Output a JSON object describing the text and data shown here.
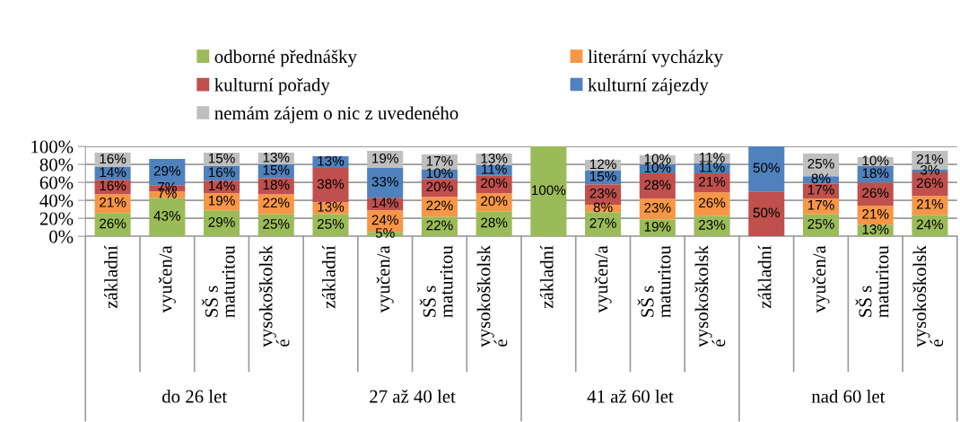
{
  "chart_data": {
    "type": "bar",
    "stacked": true,
    "categories": [
      "základní",
      "vyučen/a",
      "SŠ s\nmaturitou",
      "vysokoškolsk\né",
      "základní",
      "vyučen/a",
      "SŠ s\nmaturitou",
      "vysokoškolsk\né",
      "základní",
      "vyučen/a",
      "SŠ s\nmaturitou",
      "vysokoškolsk\né",
      "základní",
      "vyučen/a",
      "SŠ s\nmaturitou",
      "vysokoškolsk\né"
    ],
    "series": [
      {
        "name": "odborné přednášky",
        "color": "#9bbb59",
        "values": [
          26,
          43,
          29,
          25,
          25,
          5,
          22,
          28,
          100,
          27,
          19,
          23,
          null,
          25,
          13,
          24
        ],
        "value_labels": [
          "26%",
          "43%",
          "29%",
          "25%",
          "25%",
          "5%",
          "22%",
          "28%",
          "100%",
          "27%",
          "19%",
          "23%",
          null,
          "25%",
          "13%",
          "24%"
        ]
      },
      {
        "name": "literární vycházky",
        "color": "#f79646",
        "values": [
          21,
          7,
          19,
          22,
          13,
          24,
          22,
          20,
          null,
          8,
          23,
          26,
          null,
          17,
          21,
          21
        ],
        "value_labels": [
          "21%",
          "7%",
          "19%",
          "22%",
          "13%",
          "24%",
          "22%",
          "20%",
          null,
          "8%",
          "23%",
          "26%",
          null,
          "17%",
          "21%",
          "21%"
        ]
      },
      {
        "name": "kulturní pořady",
        "color": "#c0504d",
        "values": [
          16,
          7,
          14,
          18,
          38,
          14,
          20,
          20,
          null,
          23,
          28,
          21,
          50,
          17,
          26,
          26
        ],
        "value_labels": [
          "16%",
          "7%",
          "14%",
          "18%",
          "38%",
          "14%",
          "20%",
          "20%",
          null,
          "23%",
          "28%",
          "21%",
          "50%",
          "17%",
          "26%",
          "26%"
        ]
      },
      {
        "name": "kulturní zájezdy",
        "color": "#4f81bd",
        "values": [
          14,
          29,
          16,
          15,
          13,
          33,
          10,
          11,
          null,
          15,
          10,
          11,
          50,
          8,
          18,
          3
        ],
        "value_labels": [
          "14%",
          "29%",
          "16%",
          "15%",
          "13%",
          "33%",
          "10%",
          "11%",
          null,
          "15%",
          "10%",
          "11%",
          "50%",
          "8%",
          "18%",
          "3%"
        ]
      },
      {
        "name": "nemám zájem o nic z uvedeného",
        "color": "#bfbfbf",
        "values": [
          16,
          null,
          15,
          13,
          null,
          19,
          17,
          13,
          null,
          12,
          10,
          11,
          null,
          25,
          10,
          21
        ],
        "value_labels": [
          "16%",
          null,
          "15%",
          "13%",
          null,
          "19%",
          "17%",
          "13%",
          null,
          "12%",
          "10%",
          "11%",
          null,
          "25%",
          "10%",
          "21%"
        ]
      }
    ],
    "ylim": [
      0,
      100
    ],
    "yticks": [
      {
        "value": 0,
        "label": "0%"
      },
      {
        "value": 20,
        "label": "20%"
      },
      {
        "value": 40,
        "label": "40%"
      },
      {
        "value": 60,
        "label": "60%"
      },
      {
        "value": 80,
        "label": "80%"
      },
      {
        "value": 100,
        "label": "100%"
      }
    ],
    "grid": "y",
    "legend": "top",
    "annotations": [
      "do 26 let",
      "27 až 40 let",
      "41 až 60 let",
      "nad 60 let"
    ]
  }
}
